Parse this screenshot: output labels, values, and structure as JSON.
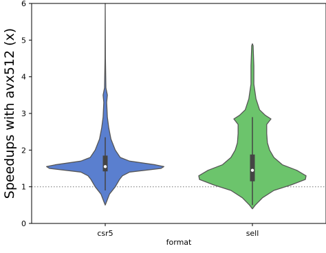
{
  "chart_data": {
    "type": "violin",
    "xlabel": "format",
    "ylabel": "Speedups with avx512 (x)",
    "categories": [
      "csr5",
      "sell"
    ],
    "ylim": [
      0,
      6
    ],
    "yticks": [
      0,
      1,
      2,
      3,
      4,
      5,
      6
    ],
    "reference_line": {
      "y": 1.0,
      "style": "dotted",
      "color": "#808080"
    },
    "series": [
      {
        "category": "csr5",
        "color": "#5a7fcf",
        "min": 0.5,
        "max": 6.0,
        "q1": 1.42,
        "median": 1.55,
        "q3": 1.85,
        "whisker_low": 0.9,
        "whisker_high": 2.35,
        "density": [
          [
            0.5,
            0.0
          ],
          [
            0.6,
            0.02
          ],
          [
            0.8,
            0.06
          ],
          [
            1.0,
            0.14
          ],
          [
            1.2,
            0.2
          ],
          [
            1.3,
            0.24
          ],
          [
            1.4,
            0.34
          ],
          [
            1.5,
            0.78
          ],
          [
            1.55,
            0.82
          ],
          [
            1.6,
            0.7
          ],
          [
            1.7,
            0.34
          ],
          [
            1.8,
            0.21
          ],
          [
            2.0,
            0.14
          ],
          [
            2.3,
            0.08
          ],
          [
            2.6,
            0.05
          ],
          [
            2.9,
            0.03
          ],
          [
            3.3,
            0.02
          ],
          [
            3.5,
            0.03
          ],
          [
            3.7,
            0.01
          ],
          [
            4.5,
            0.003
          ],
          [
            6.0,
            0.0
          ]
        ]
      },
      {
        "category": "sell",
        "color": "#6cc46c",
        "min": 0.4,
        "max": 4.9,
        "q1": 1.15,
        "median": 1.45,
        "q3": 1.88,
        "whisker_low": 0.5,
        "whisker_high": 2.9,
        "density": [
          [
            0.4,
            0.0
          ],
          [
            0.5,
            0.04
          ],
          [
            0.7,
            0.14
          ],
          [
            0.9,
            0.3
          ],
          [
            1.05,
            0.54
          ],
          [
            1.2,
            0.74
          ],
          [
            1.3,
            0.75
          ],
          [
            1.45,
            0.62
          ],
          [
            1.6,
            0.42
          ],
          [
            1.8,
            0.3
          ],
          [
            2.0,
            0.24
          ],
          [
            2.2,
            0.21
          ],
          [
            2.45,
            0.2
          ],
          [
            2.7,
            0.2
          ],
          [
            2.85,
            0.26
          ],
          [
            2.95,
            0.18
          ],
          [
            3.1,
            0.1
          ],
          [
            3.4,
            0.05
          ],
          [
            3.8,
            0.02
          ],
          [
            4.3,
            0.02
          ],
          [
            4.85,
            0.01
          ],
          [
            4.9,
            0.0
          ]
        ]
      }
    ]
  }
}
